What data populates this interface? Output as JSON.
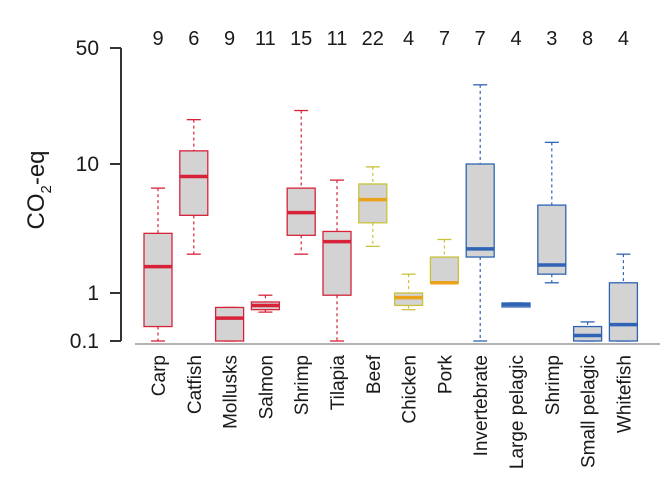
{
  "chart_data": {
    "type": "box",
    "title": "",
    "xlabel": "",
    "ylabel": "CO2-eq",
    "ylabel_parts": {
      "pre": "CO",
      "sub": "2",
      "post": "-eq"
    },
    "y_scale": "log-ish (nonlinear)",
    "y_ticks": [
      {
        "value": 0.1,
        "label": "0.1"
      },
      {
        "value": 1,
        "label": "1"
      },
      {
        "value": 10,
        "label": "10"
      },
      {
        "value": 50,
        "label": "50"
      }
    ],
    "ylim": [
      0.1,
      50
    ],
    "grid": false,
    "colors": {
      "red": "#d6233a",
      "yellow": "#c9c23a",
      "yellow_median": "#e9a21a",
      "blue": "#2f63b5",
      "box_fill": "#d3d3d3"
    },
    "categories": [
      {
        "label": "Carp",
        "n": "9",
        "color": "red",
        "min": 0.1,
        "q1": 0.2,
        "median": 1.6,
        "q3": 2.9,
        "max": 6.5
      },
      {
        "label": "Catfish",
        "n": "6",
        "color": "red",
        "min": 2.0,
        "q1": 4.0,
        "median": 8.0,
        "q3": 12.0,
        "max": 18.5
      },
      {
        "label": "Mollusks",
        "n": "9",
        "color": "red",
        "min": 0.1,
        "q1": 0.1,
        "median": 0.3,
        "q3": 0.5,
        "max": 0.5
      },
      {
        "label": "Salmon",
        "n": "11",
        "color": "red",
        "min": 0.4,
        "q1": 0.45,
        "median": 0.55,
        "q3": 0.65,
        "max": 0.9
      },
      {
        "label": "Shrimp",
        "n": "15",
        "color": "red",
        "min": 2.0,
        "q1": 2.8,
        "median": 4.2,
        "q3": 6.5,
        "max": 21.0
      },
      {
        "label": "Tilapia",
        "n": "11",
        "color": "red",
        "min": 0.1,
        "q1": 0.9,
        "median": 2.5,
        "q3": 3.0,
        "max": 7.5
      },
      {
        "label": "Beef",
        "n": "22",
        "color": "yellow",
        "min": 2.3,
        "q1": 3.5,
        "median": 5.3,
        "q3": 7.0,
        "max": 9.5
      },
      {
        "label": "Chicken",
        "n": "4",
        "color": "yellow",
        "min": 0.45,
        "q1": 0.55,
        "median": 0.8,
        "q3": 1.0,
        "max": 1.4
      },
      {
        "label": "Pork",
        "n": "7",
        "color": "yellow",
        "min": 1.2,
        "q1": 1.2,
        "median": 1.2,
        "q3": 1.9,
        "max": 2.6
      },
      {
        "label": "Invertebrate",
        "n": "7",
        "color": "blue",
        "min": 0.1,
        "q1": 1.9,
        "median": 2.2,
        "q3": 10.0,
        "max": 30.0
      },
      {
        "label": "Large pelagic",
        "n": "4",
        "color": "blue",
        "min": 0.53,
        "q1": 0.53,
        "median": 0.58,
        "q3": 0.62,
        "max": 0.62
      },
      {
        "label": "Shrimp",
        "n": "3",
        "color": "blue",
        "min": 1.2,
        "q1": 1.4,
        "median": 1.65,
        "q3": 4.8,
        "max": 13.5
      },
      {
        "label": "Small pelagic",
        "n": "8",
        "color": "blue",
        "min": 0.1,
        "q1": 0.1,
        "median": 0.13,
        "q3": 0.2,
        "max": 0.25
      },
      {
        "label": "Whitefish",
        "n": "4",
        "color": "blue",
        "min": 0.1,
        "q1": 0.1,
        "median": 0.22,
        "q3": 1.2,
        "max": 2.0
      }
    ]
  }
}
